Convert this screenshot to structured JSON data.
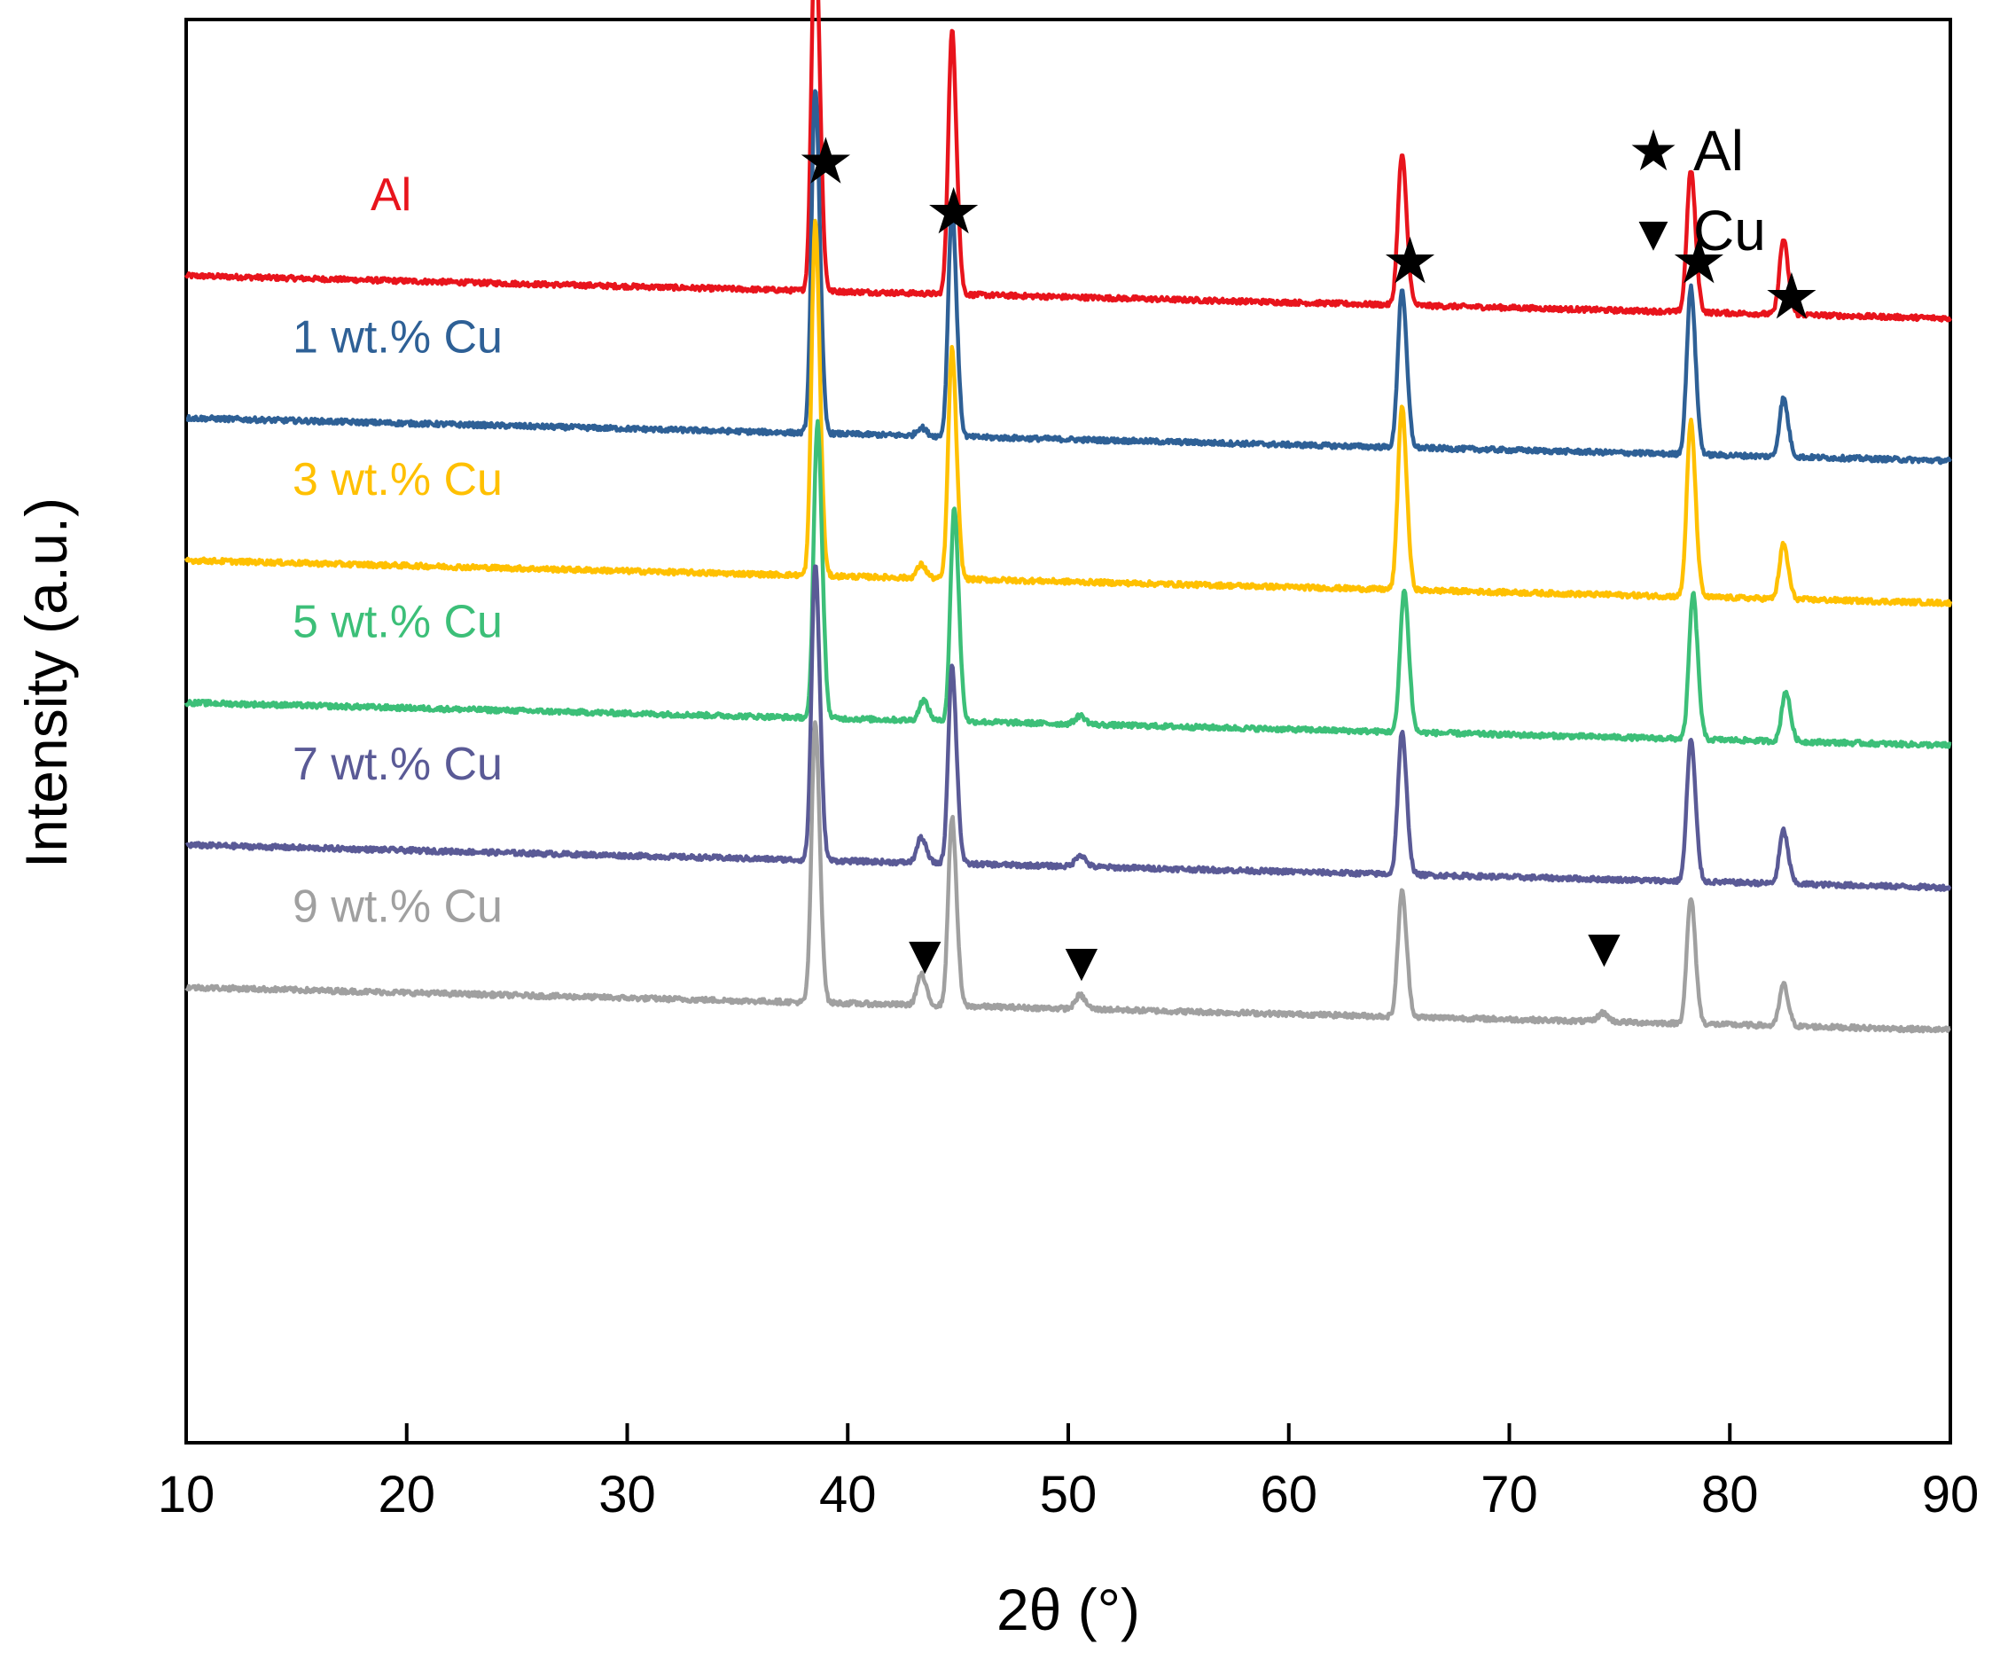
{
  "chart_data": {
    "type": "line",
    "title": "",
    "xlabel": "2θ (°)",
    "ylabel": "Intensity (a.u.)",
    "xlim": [
      10,
      90
    ],
    "xticks": [
      10,
      20,
      30,
      40,
      50,
      60,
      70,
      80,
      90
    ],
    "xtick_labels": [
      "10",
      "20",
      "30",
      "40",
      "50",
      "60",
      "70",
      "80",
      "90"
    ],
    "y_units": "arbitrary (stacked offsets)",
    "ylim": [
      0,
      100
    ],
    "grid": false,
    "series": [
      {
        "name": "Al",
        "label": "Al",
        "color": "#e8141c",
        "baseline_start": 82,
        "baseline_end": 79,
        "peaks": [
          {
            "x": 38.5,
            "h": 22.5,
            "w": 0.16
          },
          {
            "x": 44.7,
            "h": 16.0,
            "w": 0.16
          },
          {
            "x": 65.1,
            "h": 9.0,
            "w": 0.17
          },
          {
            "x": 78.2,
            "h": 8.5,
            "w": 0.17
          },
          {
            "x": 82.4,
            "h": 4.5,
            "w": 0.17
          }
        ]
      },
      {
        "name": "1 wt.% Cu",
        "label": "1 wt.% Cu",
        "color": "#2e6096",
        "baseline_start": 72,
        "baseline_end": 69,
        "peaks": [
          {
            "x": 38.5,
            "h": 21.0,
            "w": 0.16
          },
          {
            "x": 43.3,
            "h": 0.5,
            "w": 0.18
          },
          {
            "x": 44.7,
            "h": 14.0,
            "w": 0.16
          },
          {
            "x": 65.1,
            "h": 9.5,
            "w": 0.17
          },
          {
            "x": 78.2,
            "h": 10.0,
            "w": 0.17
          },
          {
            "x": 82.4,
            "h": 3.5,
            "w": 0.17
          }
        ]
      },
      {
        "name": "3 wt.% Cu",
        "label": "3 wt.% Cu",
        "color": "#ffc000",
        "baseline_start": 62,
        "baseline_end": 59,
        "peaks": [
          {
            "x": 38.5,
            "h": 21.5,
            "w": 0.16
          },
          {
            "x": 43.3,
            "h": 0.8,
            "w": 0.18
          },
          {
            "x": 44.7,
            "h": 14.0,
            "w": 0.16
          },
          {
            "x": 65.1,
            "h": 11.0,
            "w": 0.17
          },
          {
            "x": 78.2,
            "h": 10.5,
            "w": 0.17
          },
          {
            "x": 82.4,
            "h": 3.3,
            "w": 0.17
          }
        ]
      },
      {
        "name": "5 wt.% Cu",
        "label": "5 wt.% Cu",
        "color": "#3cbf78",
        "baseline_start": 52,
        "baseline_end": 49,
        "peaks": [
          {
            "x": 38.6,
            "h": 18.0,
            "w": 0.16
          },
          {
            "x": 43.4,
            "h": 1.2,
            "w": 0.18
          },
          {
            "x": 44.8,
            "h": 13.0,
            "w": 0.16
          },
          {
            "x": 50.5,
            "h": 0.5,
            "w": 0.2
          },
          {
            "x": 65.2,
            "h": 8.5,
            "w": 0.17
          },
          {
            "x": 78.3,
            "h": 8.7,
            "w": 0.17
          },
          {
            "x": 82.5,
            "h": 3.0,
            "w": 0.17
          }
        ]
      },
      {
        "name": "7 wt.% Cu",
        "label": "7 wt.% Cu",
        "color": "#5a5a96",
        "baseline_start": 42,
        "baseline_end": 39,
        "peaks": [
          {
            "x": 38.5,
            "h": 18.0,
            "w": 0.16
          },
          {
            "x": 43.3,
            "h": 1.5,
            "w": 0.18
          },
          {
            "x": 44.7,
            "h": 12.0,
            "w": 0.16
          },
          {
            "x": 50.5,
            "h": 0.7,
            "w": 0.2
          },
          {
            "x": 65.1,
            "h": 8.5,
            "w": 0.17
          },
          {
            "x": 78.2,
            "h": 8.5,
            "w": 0.17
          },
          {
            "x": 82.4,
            "h": 3.2,
            "w": 0.17
          }
        ]
      },
      {
        "name": "9 wt.% Cu",
        "label": "9 wt.% Cu",
        "color": "#a0a0a0",
        "baseline_start": 32,
        "baseline_end": 29,
        "peaks": [
          {
            "x": 38.5,
            "h": 17.0,
            "w": 0.16
          },
          {
            "x": 43.3,
            "h": 1.8,
            "w": 0.18
          },
          {
            "x": 44.7,
            "h": 11.5,
            "w": 0.16
          },
          {
            "x": 50.5,
            "h": 0.8,
            "w": 0.2
          },
          {
            "x": 65.1,
            "h": 7.5,
            "w": 0.17
          },
          {
            "x": 74.2,
            "h": 0.5,
            "w": 0.2
          },
          {
            "x": 78.2,
            "h": 7.5,
            "w": 0.17
          },
          {
            "x": 82.4,
            "h": 2.5,
            "w": 0.17
          }
        ]
      }
    ],
    "annotations": [
      {
        "symbol": "★",
        "phase": "Al",
        "x": 39.0,
        "y": 88.5
      },
      {
        "symbol": "★",
        "phase": "Al",
        "x": 44.8,
        "y": 85.0
      },
      {
        "symbol": "★",
        "phase": "Al",
        "x": 65.5,
        "y": 81.5
      },
      {
        "symbol": "★",
        "phase": "Al",
        "x": 78.6,
        "y": 81.5
      },
      {
        "symbol": "★",
        "phase": "Al",
        "x": 82.8,
        "y": 79.0
      },
      {
        "symbol": "▼",
        "phase": "Cu",
        "x": 43.5,
        "y": 33.0
      },
      {
        "symbol": "▼",
        "phase": "Cu",
        "x": 50.6,
        "y": 32.5
      },
      {
        "symbol": "▼",
        "phase": "Cu",
        "x": 74.3,
        "y": 33.5
      }
    ],
    "legend": {
      "position": "top-right",
      "entries": [
        {
          "symbol": "★",
          "label": "Al"
        },
        {
          "symbol": "▼",
          "label": "Cu"
        }
      ]
    }
  }
}
